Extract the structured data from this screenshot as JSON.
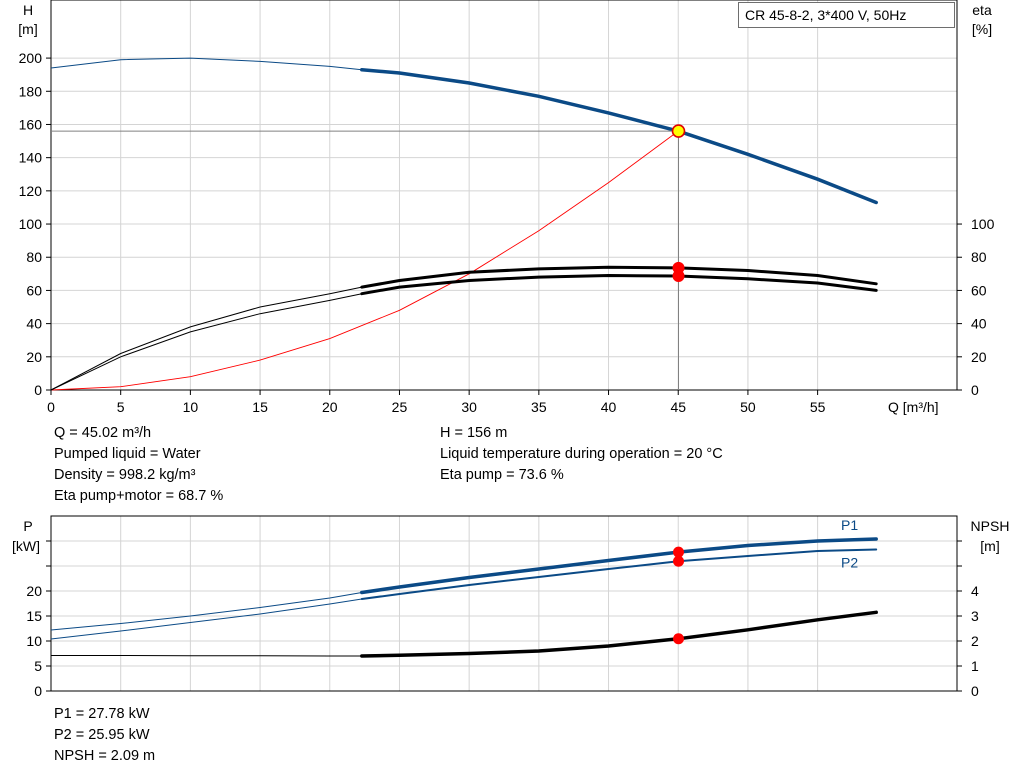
{
  "chart_data": [
    {
      "type": "line",
      "title": "CR 45-8-2, 3*400 V, 50Hz",
      "xlabel": "Q [m³/h]",
      "ylabel_left": [
        "H",
        "[m]"
      ],
      "ylabel_right": [
        "eta",
        "[%]"
      ],
      "xlim": [
        0,
        65
      ],
      "ylim_left": [
        0,
        235
      ],
      "ylim_right": [
        0,
        100
      ],
      "x_ticks": [
        0,
        5,
        10,
        15,
        20,
        25,
        30,
        35,
        40,
        45,
        50,
        55
      ],
      "y_ticks_left": [
        0,
        20,
        40,
        60,
        80,
        100,
        120,
        140,
        160,
        180,
        200
      ],
      "y_ticks_right": [
        0,
        20,
        40,
        60,
        80,
        100
      ],
      "grid": true,
      "series": [
        {
          "axis": "left",
          "color": "#0b4a86",
          "x": [
            0,
            5,
            10,
            15,
            20,
            22.3,
            25,
            30,
            35,
            40,
            45,
            50,
            55,
            59.2
          ],
          "y": [
            194,
            199,
            200,
            198,
            195,
            193,
            191,
            185,
            177,
            167,
            156,
            142,
            127,
            113
          ],
          "operating_range_from": 22.3
        },
        {
          "axis": "right",
          "color": "#000000",
          "x": [
            0,
            5,
            10,
            15,
            20,
            22.3,
            25,
            30,
            35,
            40,
            45,
            50,
            55,
            59.2
          ],
          "y": [
            0,
            22,
            38,
            50,
            58,
            62,
            66,
            71,
            73,
            74,
            73.6,
            72,
            69,
            64
          ],
          "operating_range_from": 22.3
        },
        {
          "axis": "right",
          "color": "#000000",
          "x": [
            0,
            5,
            10,
            15,
            20,
            22.3,
            25,
            30,
            35,
            40,
            45,
            50,
            55,
            59.2
          ],
          "y": [
            0,
            20,
            35,
            46,
            54,
            58,
            62,
            66,
            68,
            69,
            68.7,
            67,
            64.5,
            60
          ],
          "operating_range_from": 22.3
        },
        {
          "axis": "left",
          "color": "#ff0000",
          "role": "system-curve",
          "x": [
            0,
            5,
            10,
            15,
            20,
            25,
            30,
            35,
            40,
            45
          ],
          "y": [
            0,
            2,
            8,
            18,
            31,
            48,
            70,
            96,
            125,
            156
          ]
        }
      ],
      "operating_point": {
        "x": 45.02,
        "y": 156
      },
      "operating_markers_right": [
        73.6,
        68.7
      ]
    },
    {
      "type": "line",
      "ylabel_left": [
        "P",
        "[kW]"
      ],
      "ylabel_right": [
        "NPSH",
        "[m]"
      ],
      "xlim": [
        0,
        65
      ],
      "ylim_left": [
        0,
        30
      ],
      "ylim_right": [
        0,
        6
      ],
      "y_ticks_left": [
        0,
        5,
        10,
        15,
        20
      ],
      "y_ticks_right": [
        0,
        1,
        2,
        3,
        4
      ],
      "grid": true,
      "series": [
        {
          "name": "P1",
          "axis": "left",
          "color": "#0b4a86",
          "x": [
            0,
            5,
            10,
            15,
            20,
            22.3,
            25,
            30,
            35,
            40,
            45,
            50,
            55,
            59.2
          ],
          "y": [
            12.2,
            13.5,
            15,
            16.7,
            18.6,
            19.7,
            20.8,
            22.7,
            24.4,
            26.1,
            27.78,
            29.1,
            30,
            30.4
          ],
          "operating_range_from": 22.3
        },
        {
          "name": "P2",
          "axis": "left",
          "color": "#0b4a86",
          "x": [
            0,
            5,
            10,
            15,
            20,
            22.3,
            25,
            30,
            35,
            40,
            45,
            50,
            55,
            59.2
          ],
          "y": [
            10.4,
            12,
            13.7,
            15.4,
            17.4,
            18.4,
            19.4,
            21.2,
            22.8,
            24.4,
            25.95,
            27,
            28,
            28.3
          ],
          "operating_range_from": 22.3
        },
        {
          "name": "NPSH",
          "axis": "right",
          "color": "#000000",
          "x": [
            0,
            5,
            10,
            15,
            20,
            22.3,
            25,
            30,
            35,
            40,
            45,
            50,
            55,
            59.2
          ],
          "y": [
            1.42,
            1.42,
            1.41,
            1.41,
            1.4,
            1.4,
            1.43,
            1.5,
            1.6,
            1.8,
            2.09,
            2.45,
            2.85,
            3.15
          ],
          "operating_range_from": 22.3
        }
      ],
      "operating_markers_left": [
        27.78,
        25.95
      ],
      "operating_markers_right": [
        2.09
      ]
    }
  ],
  "info_top_left": [
    "Q = 45.02 m³/h",
    "Pumped liquid = Water",
    "Density = 998.2 kg/m³",
    "Eta pump+motor = 68.7 %"
  ],
  "info_top_right": [
    "H = 156 m",
    "Liquid temperature during operation = 20 °C",
    "Eta pump = 73.6 %"
  ],
  "info_bottom": [
    "P1 = 27.78 kW",
    "P2 = 25.95 kW",
    "NPSH = 2.09 m"
  ]
}
